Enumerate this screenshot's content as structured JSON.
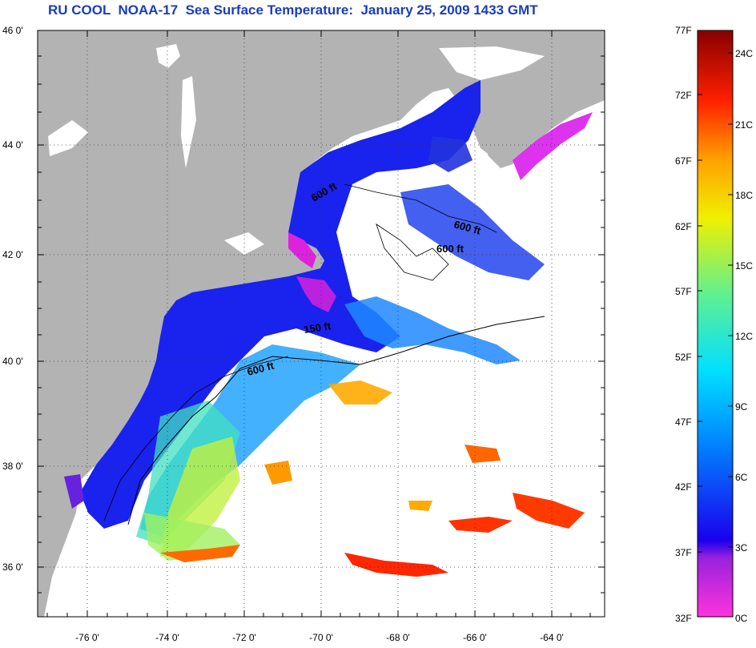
{
  "title": "RU COOL  NOAA-17  Sea Surface Temperature:  January 25, 2009 1433 GMT",
  "lat_labels": [
    "46 0'",
    "44 0'",
    "42 0'",
    "40 0'",
    "38 0'",
    "36 0'"
  ],
  "lon_labels": [
    "-76 0'",
    "-74 0'",
    "-72 0'",
    "-70 0'",
    "-68 0'",
    "-66 0'",
    "-64 0'"
  ],
  "contour_labels": [
    "600 ft",
    "600 ft",
    "600 ft",
    "150 ft",
    "600 ft"
  ],
  "colorbar": {
    "fahrenheit_labels": [
      "77F",
      "72F",
      "67F",
      "62F",
      "57F",
      "52F",
      "47F",
      "42F",
      "37F",
      "32F"
    ],
    "celsius_labels": [
      "24C",
      "21C",
      "18C",
      "15C",
      "12C",
      "9C",
      "6C",
      "3C",
      "0C"
    ]
  },
  "colors": {
    "land": "#b3b3b3",
    "title": "#1a3dbf"
  }
}
